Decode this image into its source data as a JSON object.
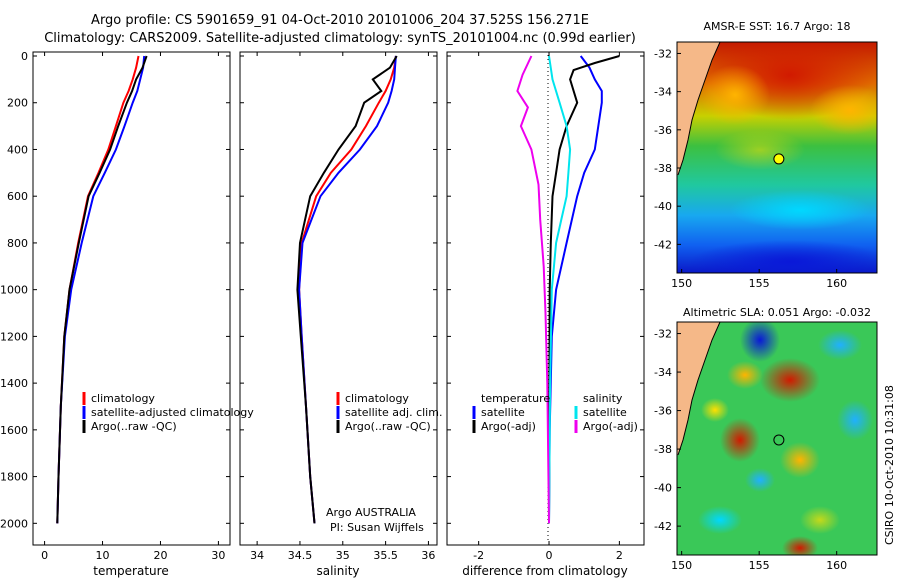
{
  "header": {
    "line1": "Argo profile: CS 5901659_91 04-Oct-2010 20101006_204 37.525S 156.271E",
    "line2": "Climatology: CARS2009. Satellite-adjusted climatology: synTS_20101004.nc (0.99d earlier)"
  },
  "colors": {
    "clim": "#ff0000",
    "sat": "#0000ff",
    "argo": "#000000",
    "sat_diff_s": "#00e5ee",
    "argo_diff_s": "#ee00ee"
  },
  "depth_ticks": [
    "0",
    "200",
    "400",
    "600",
    "800",
    "1000",
    "1200",
    "1400",
    "1600",
    "1800",
    "2000"
  ],
  "chart_data": [
    {
      "id": "temperature",
      "type": "line",
      "xlabel": "temperature",
      "xlim": [
        -2,
        32
      ],
      "ylim": [
        2050,
        0
      ],
      "xticks": [
        "0",
        "10",
        "20",
        "30"
      ],
      "legend": [
        "climatology",
        "satellite-adjusted climatology",
        "Argo(..raw -QC)"
      ],
      "series": [
        {
          "name": "climatology",
          "x": [
            16.2,
            15.8,
            15.2,
            14.5,
            13.6,
            12.3,
            11.0,
            9.3,
            7.5,
            5.8,
            4.3,
            3.4,
            2.8,
            2.4,
            2.2
          ],
          "y": [
            0,
            50,
            100,
            150,
            200,
            300,
            400,
            500,
            600,
            800,
            1000,
            1200,
            1500,
            1800,
            2000
          ]
        },
        {
          "name": "satellite-adjusted climatology",
          "x": [
            17.2,
            17.0,
            16.5,
            16.0,
            15.2,
            13.8,
            12.3,
            10.4,
            8.4,
            6.4,
            4.6,
            3.5,
            2.8,
            2.4,
            2.2
          ],
          "y": [
            0,
            50,
            100,
            150,
            200,
            300,
            400,
            500,
            600,
            800,
            1000,
            1200,
            1500,
            1800,
            2000
          ]
        },
        {
          "name": "Argo(..raw -QC)",
          "x": [
            17.6,
            16.9,
            15.8,
            15.1,
            14.2,
            12.7,
            11.3,
            9.5,
            7.6,
            5.9,
            4.3,
            3.4,
            2.8,
            2.4,
            2.2
          ],
          "y": [
            0,
            50,
            100,
            150,
            200,
            300,
            400,
            500,
            600,
            800,
            1000,
            1200,
            1500,
            1800,
            2000
          ]
        }
      ]
    },
    {
      "id": "salinity",
      "type": "line",
      "xlabel": "salinity",
      "xlim": [
        33.8,
        36.1
      ],
      "ylim": [
        2050,
        0
      ],
      "xticks": [
        "34",
        "34.5",
        "35",
        "35.5",
        "36"
      ],
      "legend": [
        "climatology",
        "satellite adj. clim.",
        "Argo(..raw -QC)"
      ],
      "annotation": [
        "Argo AUSTRALIA",
        "PI: Susan Wijffels"
      ],
      "series": [
        {
          "name": "climatology",
          "x": [
            35.62,
            35.6,
            35.56,
            35.5,
            35.42,
            35.27,
            35.1,
            34.86,
            34.69,
            34.52,
            34.49,
            34.52,
            34.57,
            34.62,
            34.67
          ],
          "y": [
            0,
            50,
            100,
            150,
            200,
            300,
            400,
            500,
            600,
            800,
            1000,
            1200,
            1500,
            1800,
            2000
          ]
        },
        {
          "name": "satellite adj. clim.",
          "x": [
            35.62,
            35.61,
            35.6,
            35.57,
            35.53,
            35.4,
            35.2,
            34.95,
            34.74,
            34.53,
            34.49,
            34.52,
            34.57,
            34.62,
            34.67
          ],
          "y": [
            0,
            50,
            100,
            150,
            200,
            300,
            400,
            500,
            600,
            800,
            1000,
            1200,
            1500,
            1800,
            2000
          ]
        },
        {
          "name": "Argo(..raw -QC)",
          "x": [
            35.63,
            35.55,
            35.35,
            35.45,
            35.25,
            35.15,
            34.95,
            34.78,
            34.62,
            34.5,
            34.47,
            34.51,
            34.57,
            34.62,
            34.67
          ],
          "y": [
            0,
            50,
            100,
            150,
            200,
            300,
            400,
            500,
            600,
            800,
            1000,
            1200,
            1500,
            1800,
            2000
          ]
        }
      ]
    },
    {
      "id": "difference",
      "type": "line",
      "xlabel": "difference from climatology",
      "xlim": [
        -2.9,
        2.7
      ],
      "ylim": [
        2050,
        0
      ],
      "xticks": [
        "-2",
        "0",
        "2"
      ],
      "legend_left_title": "temperature",
      "legend_right_title": "salinity",
      "legend": [
        "satellite",
        "Argo(-adj)",
        "satellite",
        "Argo(-adj)"
      ],
      "series": [
        {
          "name": "temperature satellite",
          "x": [
            0.9,
            1.15,
            1.3,
            1.5,
            1.5,
            1.4,
            1.3,
            1.0,
            0.8,
            0.5,
            0.2,
            0.08,
            0.02,
            0.0
          ],
          "y": [
            0,
            50,
            100,
            150,
            200,
            300,
            400,
            500,
            600,
            800,
            1000,
            1200,
            1600,
            2000
          ]
        },
        {
          "name": "temperature Argo(-adj)",
          "x": [
            2.0,
            1.3,
            0.7,
            0.6,
            0.8,
            0.5,
            0.3,
            0.2,
            0.1,
            0.05,
            0.02,
            0.01,
            0.0
          ],
          "y": [
            0,
            30,
            60,
            100,
            200,
            300,
            400,
            500,
            600,
            800,
            1000,
            1400,
            2000
          ]
        },
        {
          "name": "salinity satellite",
          "x": [
            0.0,
            0.1,
            0.3,
            0.5,
            0.6,
            0.55,
            0.5,
            0.35,
            0.2,
            0.08,
            0.03,
            0.0
          ],
          "y": [
            0,
            100,
            200,
            300,
            400,
            500,
            600,
            700,
            800,
            1000,
            1400,
            2000
          ]
        },
        {
          "name": "salinity Argo(-adj)",
          "x": [
            -0.5,
            -0.75,
            -0.9,
            -0.6,
            -0.8,
            -0.5,
            -0.3,
            -0.25,
            -0.15,
            -0.1,
            -0.05,
            0.0
          ],
          "y": [
            0,
            80,
            150,
            220,
            300,
            400,
            550,
            700,
            900,
            1100,
            1400,
            2000
          ]
        }
      ]
    },
    {
      "id": "sst_map",
      "type": "heatmap",
      "title": "AMSR-E SST: 16.7  Argo: 18",
      "xticks": [
        "150",
        "155",
        "160"
      ],
      "yticks": [
        "-32",
        "-34",
        "-36",
        "-38",
        "-40",
        "-42"
      ],
      "marker": {
        "lon": 156.271,
        "lat": -37.525
      }
    },
    {
      "id": "sla_map",
      "type": "heatmap",
      "title": "Altimetric SLA: 0.051  Argo: -0.032",
      "xticks": [
        "150",
        "155",
        "160"
      ],
      "yticks": [
        "-32",
        "-34",
        "-36",
        "-38",
        "-40",
        "-42"
      ],
      "marker": {
        "lon": 156.271,
        "lat": -37.525
      }
    }
  ],
  "credit": "CSIRO 10-Oct-2010 10:31:08"
}
